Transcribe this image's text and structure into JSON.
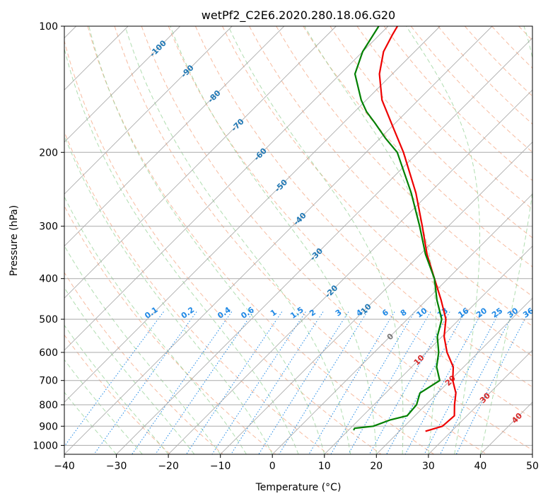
{
  "chart_data": {
    "type": "line",
    "title": "wetPf2_C2E6.2020.280.18.06.G20",
    "xlabel": "Temperature (°C)",
    "ylabel": "Pressure (hPa)",
    "xlim": [
      -40,
      50
    ],
    "ylim": [
      1050,
      100
    ],
    "x_ticks": [
      "−40",
      "−30",
      "−20",
      "−10",
      "0",
      "10",
      "20",
      "30",
      "40",
      "50"
    ],
    "y_ticks": [
      "100",
      "200",
      "300",
      "400",
      "500",
      "600",
      "700",
      "800",
      "900",
      "1000"
    ],
    "y_tick_values": [
      100,
      200,
      300,
      400,
      500,
      600,
      700,
      800,
      900,
      1000
    ],
    "skew": 1.0,
    "series": [
      {
        "name": "temperature",
        "color": "#ee0000",
        "points": [
          {
            "p": 925,
            "t": 25.0
          },
          {
            "p": 900,
            "t": 27.3
          },
          {
            "p": 850,
            "t": 27.6
          },
          {
            "p": 800,
            "t": 25.5
          },
          {
            "p": 750,
            "t": 23.5
          },
          {
            "p": 700,
            "t": 20.5
          },
          {
            "p": 650,
            "t": 18.0
          },
          {
            "p": 600,
            "t": 14.0
          },
          {
            "p": 550,
            "t": 10.4
          },
          {
            "p": 500,
            "t": 7.4
          },
          {
            "p": 450,
            "t": 2.8
          },
          {
            "p": 400,
            "t": -2.6
          },
          {
            "p": 350,
            "t": -8.7
          },
          {
            "p": 300,
            "t": -15.0
          },
          {
            "p": 250,
            "t": -22.6
          },
          {
            "p": 200,
            "t": -32.8
          },
          {
            "p": 175,
            "t": -39.4
          },
          {
            "p": 150,
            "t": -47.0
          },
          {
            "p": 130,
            "t": -52.5
          },
          {
            "p": 115,
            "t": -56.0
          },
          {
            "p": 105,
            "t": -57.5
          },
          {
            "p": 100,
            "t": -58.2
          }
        ]
      },
      {
        "name": "dewpoint",
        "color": "#008000",
        "points": [
          {
            "p": 920,
            "t": 11.0
          },
          {
            "p": 910,
            "t": 10.8
          },
          {
            "p": 900,
            "t": 14.0
          },
          {
            "p": 870,
            "t": 16.0
          },
          {
            "p": 850,
            "t": 18.5
          },
          {
            "p": 800,
            "t": 18.2
          },
          {
            "p": 750,
            "t": 16.6
          },
          {
            "p": 700,
            "t": 18.0
          },
          {
            "p": 650,
            "t": 14.8
          },
          {
            "p": 600,
            "t": 12.4
          },
          {
            "p": 550,
            "t": 9.1
          },
          {
            "p": 500,
            "t": 6.6
          },
          {
            "p": 450,
            "t": 2.0
          },
          {
            "p": 400,
            "t": -2.6
          },
          {
            "p": 350,
            "t": -9.0
          },
          {
            "p": 300,
            "t": -15.5
          },
          {
            "p": 250,
            "t": -23.5
          },
          {
            "p": 200,
            "t": -34.0
          },
          {
            "p": 185,
            "t": -39.0
          },
          {
            "p": 170,
            "t": -44.0
          },
          {
            "p": 160,
            "t": -47.7
          },
          {
            "p": 150,
            "t": -51.0
          },
          {
            "p": 130,
            "t": -57.2
          },
          {
            "p": 115,
            "t": -60.0
          },
          {
            "p": 100,
            "t": -61.8
          }
        ]
      }
    ],
    "isotherm_labels": {
      "temps": [
        -100,
        -90,
        -80,
        -70,
        -60,
        -50,
        -40,
        -30,
        -20,
        -10,
        0,
        10,
        20,
        30,
        40
      ],
      "pressures": [
        113,
        128,
        147,
        172,
        202,
        240,
        288,
        350,
        429,
        475,
        550,
        625,
        700,
        770,
        860
      ],
      "labels": [
        "-100",
        "-90",
        "-80",
        "-70",
        "-60",
        "-50",
        "-40",
        "-30",
        "-20",
        "-10",
        "0",
        "10",
        "20",
        "30",
        "40"
      ],
      "colors": [
        "#1f77b4",
        "#1f77b4",
        "#1f77b4",
        "#1f77b4",
        "#1f77b4",
        "#1f77b4",
        "#1f77b4",
        "#1f77b4",
        "#1f77b4",
        "#1f77b4",
        "#777777",
        "#d62728",
        "#d62728",
        "#d62728",
        "#d62728"
      ]
    },
    "mixing_ratio_labels": {
      "values": [
        0.1,
        0.2,
        0.4,
        0.6,
        1,
        1.5,
        2,
        3,
        4,
        6,
        8,
        10,
        13,
        16,
        20,
        25,
        30,
        36
      ],
      "labels": [
        "0.1",
        "0.2",
        "0.4",
        "0.6",
        "1",
        "1.5",
        "2",
        "3",
        "4",
        "6",
        "8",
        "10",
        "13",
        "16",
        "20",
        "25",
        "30",
        "36"
      ],
      "label_temps": [
        -23,
        -16,
        -9,
        -4.5,
        0.5,
        5,
        8,
        13,
        17,
        22,
        25.5,
        29,
        33,
        37,
        40.5,
        43.5,
        46.5,
        49.5
      ]
    },
    "colors": {
      "isobar": "#aaaaaa",
      "isotherm": "#999999",
      "dry_adiabat": "#f4a582",
      "moist_adiabat": "#8fcf8f",
      "mixing_ratio": "#1e88e5"
    }
  }
}
